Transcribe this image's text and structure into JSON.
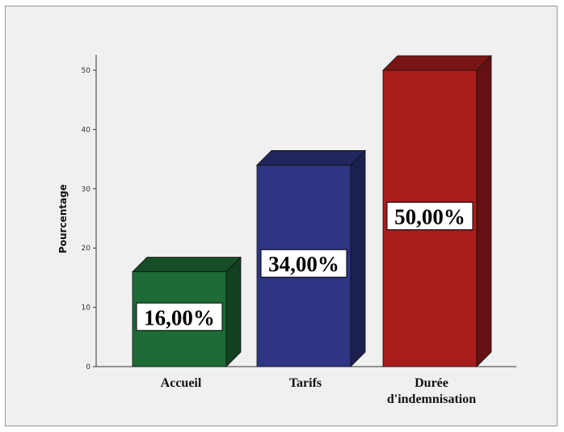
{
  "chart_data": {
    "type": "bar",
    "style": "3d",
    "categories": [
      "Accueil",
      "Tarifs",
      "Durée\nd'indemnisation"
    ],
    "values": [
      16.0,
      34.0,
      50.0
    ],
    "data_labels": [
      "16,00%",
      "34,00%",
      "50,00%"
    ],
    "bar_colors": [
      "#1e6b35",
      "#2e3583",
      "#a81c1c"
    ],
    "ylabel": "Pourcentage",
    "yticks": [
      0,
      10,
      20,
      30,
      40,
      50
    ],
    "ylim": [
      0,
      50
    ],
    "grid": false,
    "legend": "none"
  }
}
